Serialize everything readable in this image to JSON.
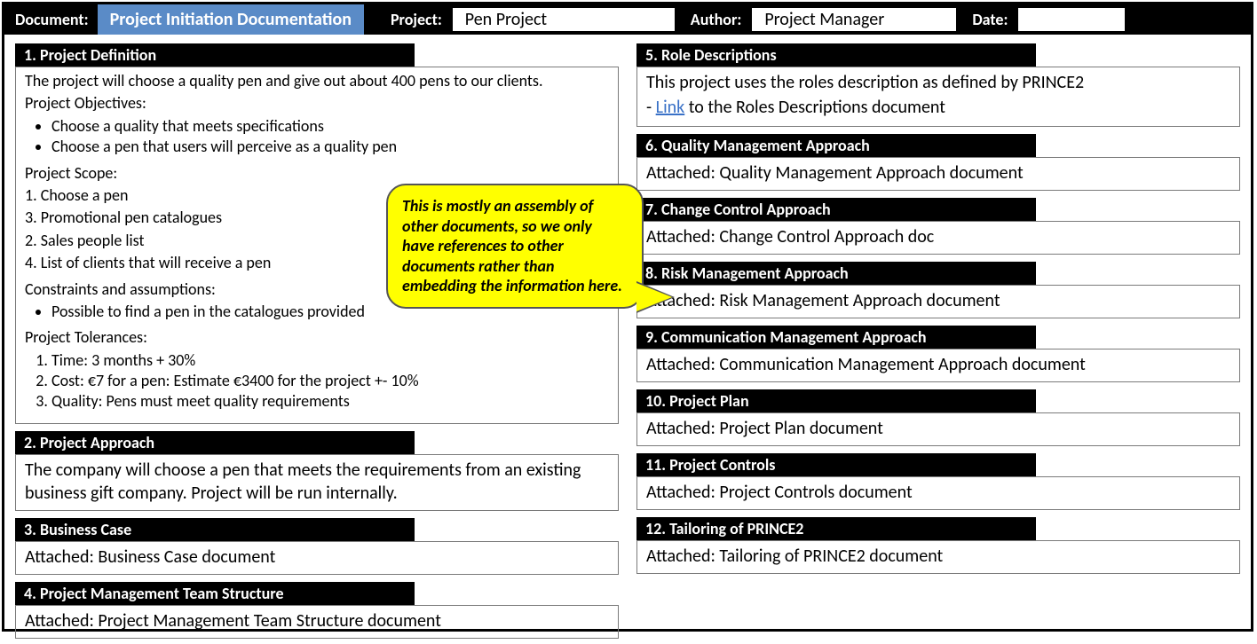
{
  "header": {
    "doc_label": "Document:",
    "doc_title": "Project Initiation Documentation",
    "project_label": "Project:",
    "project_value": "Pen Project",
    "author_label": "Author:",
    "author_value": "Project Manager",
    "date_label": "Date:",
    "date_value": ""
  },
  "callout": {
    "text": "This is mostly an assembly of other documents, so we only have references to other documents rather than embedding the information here."
  },
  "left": {
    "s1": {
      "title": "1. Project Definition",
      "intro": "The project will choose a quality pen and give out about 400 pens to our clients.",
      "obj_head": "Project Objectives:",
      "obj1": "Choose a quality that meets specifications",
      "obj2": "Choose a pen that users will perceive as a quality pen",
      "scope_head": "Project Scope:",
      "sc1": "Choose a pen",
      "sc2": "Promotional pen catalogues",
      "sc3": "Sales people list",
      "sc4": "List of clients that will receive a pen",
      "con_head": "Constraints and assumptions:",
      "con1": "Possible to find a pen in the catalogues provided",
      "tol_head": "Project Tolerances:",
      "tol1": "Time: 3 months + 30%",
      "tol2": "Cost: €7 for a pen: Estimate €3400 for the project +- 10%",
      "tol3": "Quality: Pens must meet quality requirements"
    },
    "s2": {
      "title": "2. Project Approach",
      "text": "The company will choose a pen that meets the requirements from an existing business gift company. Project will be run internally."
    },
    "s3": {
      "title": "3. Business Case",
      "text": "Attached: Business Case document"
    },
    "s4": {
      "title": "4. Project Management Team Structure",
      "text": "Attached: Project Management Team Structure document"
    }
  },
  "right": {
    "s5": {
      "title": "5. Role Descriptions",
      "line1": "This project uses the roles description as defined by PRINCE2",
      "dash": "- ",
      "link": "Link",
      "line2_rest": " to the Roles Descriptions document"
    },
    "s6": {
      "title": "6. Quality Management Approach",
      "text": "Attached: Quality Management Approach document"
    },
    "s7": {
      "title": "7. Change Control Approach",
      "text": "Attached: Change Control Approach doc"
    },
    "s8": {
      "title": "8. Risk Management Approach",
      "text": "Attached: Risk Management Approach document"
    },
    "s9": {
      "title": "9. Communication Management Approach",
      "text": "Attached: Communication Management Approach document"
    },
    "s10": {
      "title": "10. Project Plan",
      "text": "Attached: Project Plan document"
    },
    "s11": {
      "title": "11. Project Controls",
      "text": "Attached: Project Controls document"
    },
    "s12": {
      "title": "12. Tailoring of PRINCE2",
      "text": "Attached: Tailoring of PRINCE2 document"
    }
  }
}
